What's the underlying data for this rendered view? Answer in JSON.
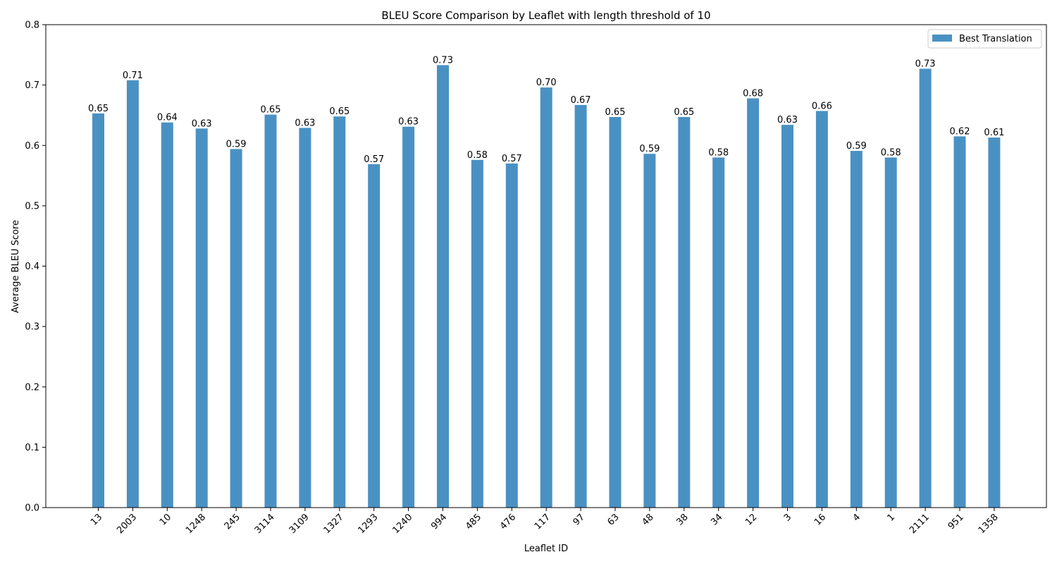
{
  "chart_data": {
    "type": "bar",
    "title": "BLEU Score Comparison by Leaflet with length threshold of 10",
    "xlabel": "Leaflet ID",
    "ylabel": "Average BLEU Score",
    "ylim": [
      0,
      0.8
    ],
    "yticks": [
      "0.0",
      "0.1",
      "0.2",
      "0.3",
      "0.4",
      "0.5",
      "0.6",
      "0.7",
      "0.8"
    ],
    "grid": false,
    "legend_position": "top-right",
    "categories": [
      "13",
      "2003",
      "10",
      "1248",
      "245",
      "3114",
      "3109",
      "1327",
      "1293",
      "1240",
      "994",
      "485",
      "476",
      "117",
      "97",
      "63",
      "48",
      "38",
      "34",
      "12",
      "3",
      "16",
      "4",
      "1",
      "2111",
      "951",
      "1358"
    ],
    "series": [
      {
        "name": "Best Translation",
        "color": "#4a91c3",
        "values": [
          0.653,
          0.708,
          0.638,
          0.628,
          0.594,
          0.651,
          0.629,
          0.648,
          0.569,
          0.631,
          0.733,
          0.576,
          0.57,
          0.696,
          0.667,
          0.647,
          0.586,
          0.647,
          0.58,
          0.678,
          0.634,
          0.657,
          0.591,
          0.58,
          0.727,
          0.615,
          0.613
        ],
        "labels": [
          "0.65",
          "0.71",
          "0.64",
          "0.63",
          "0.59",
          "0.65",
          "0.63",
          "0.65",
          "0.57",
          "0.63",
          "0.73",
          "0.58",
          "0.57",
          "0.70",
          "0.67",
          "0.65",
          "0.59",
          "0.65",
          "0.58",
          "0.68",
          "0.63",
          "0.66",
          "0.59",
          "0.58",
          "0.73",
          "0.62",
          "0.61"
        ]
      }
    ]
  }
}
